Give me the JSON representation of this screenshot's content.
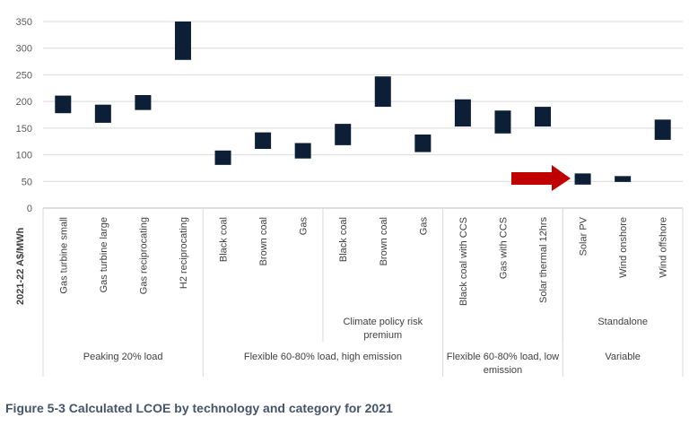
{
  "chart_data": {
    "type": "floating-bar",
    "title": "",
    "ylabel": "2021-22 A$/MWh",
    "xlabel": "",
    "ylim": [
      0,
      350
    ],
    "yticks": [
      0,
      50,
      100,
      150,
      200,
      250,
      300,
      350
    ],
    "grid": true,
    "bar_color": "#0d1f36",
    "categories": [
      "Gas turbine small",
      "Gas turbine large",
      "Gas reciprocating",
      "H2 reciprocating",
      "Black coal",
      "Brown coal",
      "Gas",
      "Black coal",
      "Brown coal",
      "Gas",
      "Black coal with CCS",
      "Gas with CCS",
      "Solar thermal 12hrs",
      "Solar PV",
      "Wind onshore",
      "Wind offshore"
    ],
    "low": [
      178,
      160,
      184,
      278,
      81,
      111,
      93,
      118,
      190,
      105,
      153,
      140,
      153,
      44,
      49,
      128
    ],
    "high": [
      211,
      194,
      212,
      350,
      108,
      142,
      122,
      158,
      247,
      138,
      204,
      183,
      190,
      65,
      60,
      166
    ],
    "subgroups": [
      {
        "label": "Climate policy risk premium",
        "lines": [
          "Climate policy risk",
          "premium"
        ],
        "span": [
          7,
          9
        ]
      },
      {
        "label": "Standalone",
        "lines": [
          "Standalone"
        ],
        "span": [
          13,
          15
        ]
      }
    ],
    "groups": [
      {
        "label": "Peaking 20% load",
        "lines": [
          "Peaking 20% load"
        ],
        "span": [
          0,
          3
        ]
      },
      {
        "label": "Flexible 60-80% load, high emission",
        "lines": [
          "Flexible 60-80% load, high emission"
        ],
        "span": [
          4,
          9
        ]
      },
      {
        "label": "Flexible 60-80% load, low emission",
        "lines": [
          "Flexible 60-80% load, low",
          "emission"
        ],
        "span": [
          10,
          12
        ]
      },
      {
        "label": "Variable",
        "lines": [
          "Variable"
        ],
        "span": [
          13,
          15
        ]
      }
    ],
    "annotation": {
      "type": "arrow",
      "color": "#c00000",
      "points_to": "Solar PV"
    }
  },
  "caption": "Figure 5-3 Calculated LCOE by technology and category for 2021"
}
